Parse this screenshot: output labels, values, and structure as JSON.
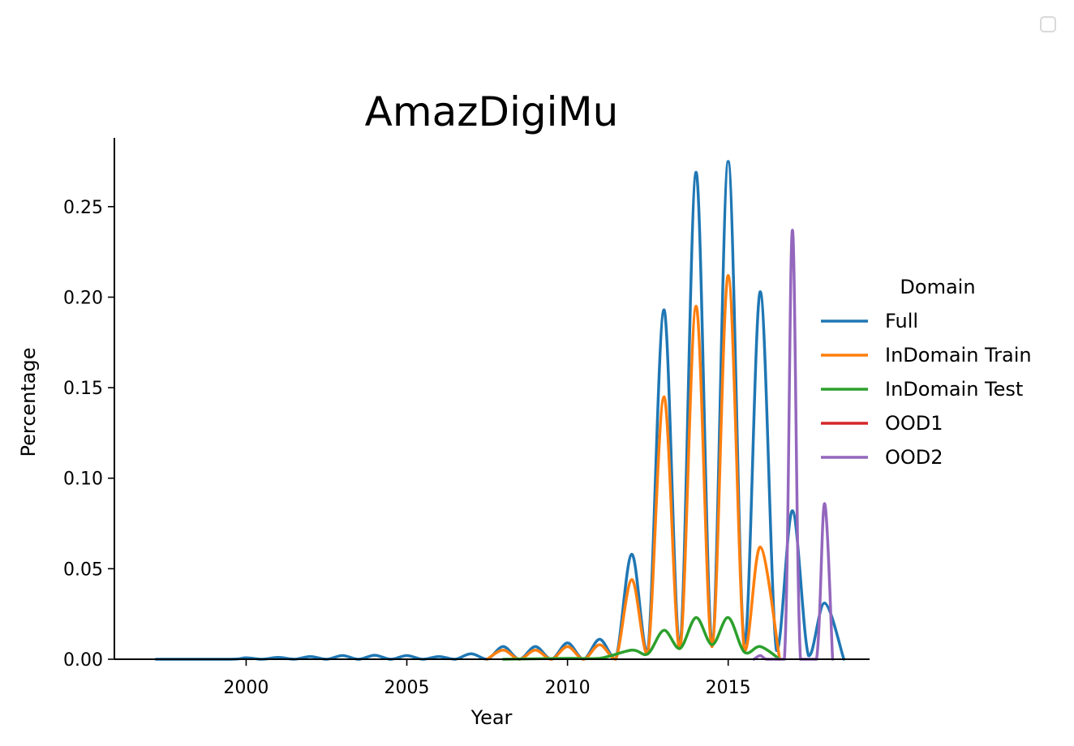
{
  "chart_data": {
    "type": "line",
    "title": "AmazDigiMu",
    "xlabel": "Year",
    "ylabel": "Percentage",
    "xlim": [
      1995.9,
      2019.4
    ],
    "ylim": [
      0,
      0.288
    ],
    "xticks": [
      2000,
      2005,
      2010,
      2015
    ],
    "xtick_labels": [
      "2000",
      "2005",
      "2010",
      "2015"
    ],
    "yticks": [
      0,
      0.05,
      0.1,
      0.15,
      0.2,
      0.25
    ],
    "ytick_labels": [
      "0.00",
      "0.05",
      "0.10",
      "0.15",
      "0.20",
      "0.25"
    ],
    "grid": false,
    "legend": {
      "title": "Domain",
      "placement": "right"
    },
    "series": [
      {
        "name": "Full",
        "color": "#1f77b4",
        "x": [
          1997.2,
          1999.5,
          2000,
          2000.5,
          2001,
          2001.5,
          2002,
          2002.5,
          2003,
          2003.5,
          2004,
          2004.5,
          2005,
          2005.5,
          2006,
          2006.5,
          2007,
          2007.5,
          2008,
          2008.5,
          2009,
          2009.5,
          2010,
          2010.5,
          2011,
          2011.5,
          2012,
          2012.5,
          2013,
          2013.5,
          2014,
          2014.5,
          2015,
          2015.5,
          2016,
          2016.5,
          2017,
          2017.5,
          2018,
          2018.6
        ],
        "y": [
          0,
          0,
          0.0008,
          0,
          0.001,
          0,
          0.0015,
          0,
          0.002,
          0,
          0.0022,
          0,
          0.002,
          0,
          0.0015,
          0,
          0.003,
          0,
          0.007,
          0,
          0.007,
          0,
          0.009,
          0,
          0.011,
          0,
          0.058,
          0.004,
          0.193,
          0.007,
          0.269,
          0.009,
          0.275,
          0.009,
          0.203,
          0.005,
          0.082,
          0.002,
          0.031,
          0
        ]
      },
      {
        "name": "InDomain Train",
        "color": "#ff7f0e",
        "x": [
          2007.5,
          2008,
          2008.5,
          2009,
          2009.5,
          2010,
          2010.5,
          2011,
          2011.5,
          2012,
          2012.5,
          2013,
          2013.5,
          2014,
          2014.5,
          2015,
          2015.5,
          2016,
          2016.6
        ],
        "y": [
          0,
          0.005,
          0,
          0.005,
          0,
          0.007,
          0,
          0.008,
          0,
          0.044,
          0.003,
          0.145,
          0.006,
          0.195,
          0.007,
          0.212,
          0.005,
          0.062,
          0
        ]
      },
      {
        "name": "InDomain Test",
        "color": "#2ca02c",
        "x": [
          2008,
          2010,
          2011,
          2012,
          2012.5,
          2013,
          2013.5,
          2014,
          2014.5,
          2015,
          2015.5,
          2016,
          2016.6
        ],
        "y": [
          0,
          0.0005,
          0.0005,
          0.005,
          0.003,
          0.016,
          0.006,
          0.023,
          0.008,
          0.023,
          0.004,
          0.007,
          0
        ]
      },
      {
        "name": "OOD1",
        "color": "#d62728",
        "x": [],
        "y": []
      },
      {
        "name": "OOD2",
        "color": "#9467bd",
        "x": [
          2015.8,
          2016,
          2016.2,
          2016.75,
          2017,
          2017.25,
          2017.75,
          2018,
          2018.25
        ],
        "y": [
          0,
          0.002,
          0,
          0,
          0.237,
          0,
          0,
          0.086,
          0
        ]
      }
    ]
  }
}
